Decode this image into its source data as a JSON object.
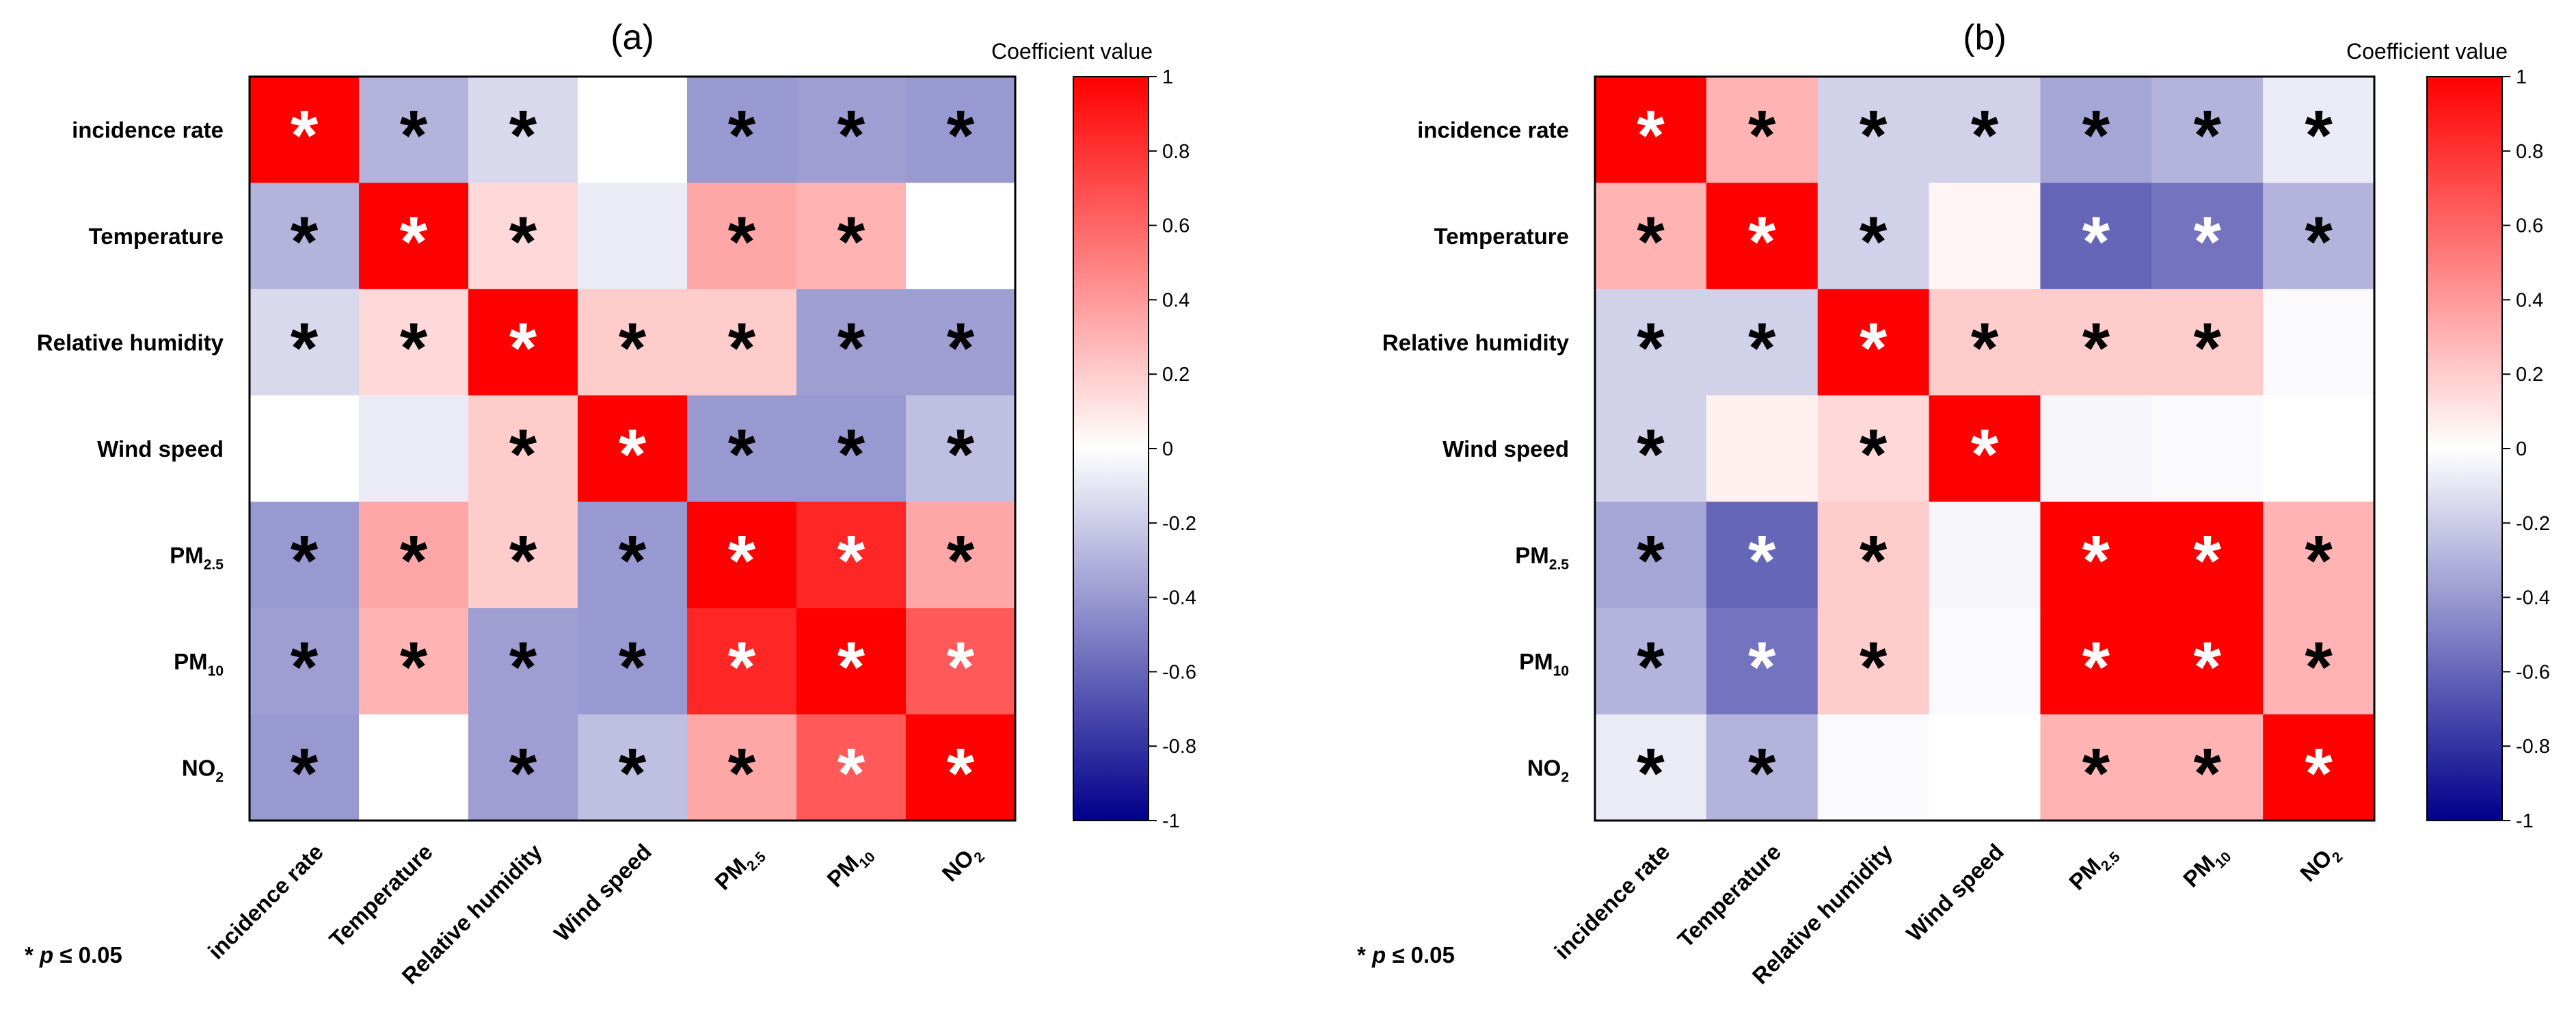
{
  "chart_data": [
    {
      "type": "heatmap",
      "title": "(a)",
      "rows": [
        "incidence rate",
        "Temperature",
        "Relative humidity",
        "Wind speed",
        "PM2.5",
        "PM10",
        "NO2"
      ],
      "columns": [
        "incidence rate",
        "Temperature",
        "Relative humidity",
        "Wind speed",
        "PM2.5",
        "PM10",
        "NO2"
      ],
      "values": [
        [
          1.0,
          -0.3,
          -0.15,
          0.0,
          -0.4,
          -0.38,
          -0.4
        ],
        [
          -0.3,
          1.0,
          0.15,
          -0.08,
          0.35,
          0.3,
          0.0
        ],
        [
          -0.15,
          0.15,
          1.0,
          0.2,
          0.2,
          -0.38,
          -0.38
        ],
        [
          0.0,
          -0.08,
          0.2,
          1.0,
          -0.4,
          -0.4,
          -0.25
        ],
        [
          -0.4,
          0.35,
          0.2,
          -0.4,
          1.0,
          0.85,
          0.35
        ],
        [
          -0.38,
          0.3,
          -0.38,
          -0.4,
          0.85,
          1.0,
          0.65
        ],
        [
          -0.4,
          0.0,
          -0.38,
          -0.25,
          0.35,
          0.65,
          1.0
        ]
      ],
      "significant": [
        [
          1,
          1,
          1,
          0,
          1,
          1,
          1
        ],
        [
          1,
          1,
          1,
          0,
          1,
          1,
          0
        ],
        [
          1,
          1,
          1,
          1,
          1,
          1,
          1
        ],
        [
          0,
          0,
          1,
          1,
          1,
          1,
          1
        ],
        [
          1,
          1,
          1,
          1,
          1,
          1,
          1
        ],
        [
          1,
          1,
          1,
          1,
          1,
          1,
          1
        ],
        [
          1,
          0,
          1,
          1,
          1,
          1,
          1
        ]
      ],
      "colorbar": {
        "title": "Coefficient value",
        "range": [
          -1,
          1
        ],
        "ticks": [
          "1",
          "0.8",
          "0.6",
          "0.4",
          "0.2",
          "0",
          "-0.2",
          "-0.4",
          "-0.6",
          "-0.8",
          "-1"
        ]
      },
      "note": "* p ≤ 0.05"
    },
    {
      "type": "heatmap",
      "title": "(b)",
      "rows": [
        "incidence rate",
        "Temperature",
        "Relative humidity",
        "Wind speed",
        "PM2.5",
        "PM10",
        "NO2"
      ],
      "columns": [
        "incidence rate",
        "Temperature",
        "Relative humidity",
        "Wind speed",
        "PM2.5",
        "PM10",
        "NO2"
      ],
      "values": [
        [
          1.0,
          0.3,
          -0.18,
          -0.18,
          -0.35,
          -0.3,
          -0.08
        ],
        [
          0.3,
          1.0,
          -0.18,
          0.04,
          -0.6,
          -0.55,
          -0.3
        ],
        [
          -0.18,
          -0.18,
          1.0,
          0.2,
          0.2,
          0.2,
          -0.02
        ],
        [
          -0.18,
          0.06,
          0.15,
          1.0,
          -0.04,
          -0.02,
          0.0
        ],
        [
          -0.35,
          -0.6,
          0.2,
          -0.04,
          1.0,
          1.0,
          0.3
        ],
        [
          -0.3,
          -0.55,
          0.2,
          -0.02,
          1.0,
          1.0,
          0.3
        ],
        [
          -0.08,
          -0.3,
          -0.02,
          0.0,
          0.3,
          0.3,
          1.0
        ]
      ],
      "significant": [
        [
          1,
          1,
          1,
          1,
          1,
          1,
          1
        ],
        [
          1,
          1,
          1,
          0,
          1,
          1,
          1
        ],
        [
          1,
          1,
          1,
          1,
          1,
          1,
          0
        ],
        [
          1,
          0,
          1,
          1,
          0,
          0,
          0
        ],
        [
          1,
          1,
          1,
          0,
          1,
          1,
          1
        ],
        [
          1,
          1,
          1,
          0,
          1,
          1,
          1
        ],
        [
          1,
          1,
          0,
          0,
          1,
          1,
          1
        ]
      ],
      "colorbar": {
        "title": "Coefficient value",
        "range": [
          -1,
          1
        ],
        "ticks": [
          "1",
          "0.8",
          "0.6",
          "0.4",
          "0.2",
          "0",
          "-0.2",
          "-0.4",
          "-0.6",
          "-0.8",
          "-1"
        ]
      },
      "note": "* p ≤ 0.05"
    }
  ],
  "labels": {
    "main": [
      "incidence rate",
      "Temperature",
      "Relative humidity",
      "Wind speed",
      "PM",
      "PM",
      "NO"
    ],
    "sub": [
      "",
      "",
      "",
      "",
      "2.5",
      "10",
      "2"
    ]
  },
  "star_symbol": "*",
  "colors": {
    "positive": "#ff0000",
    "negative": "#00008b",
    "neutral": "#ffffff",
    "star_light": "#ffffff",
    "star_dark": "#000000"
  }
}
